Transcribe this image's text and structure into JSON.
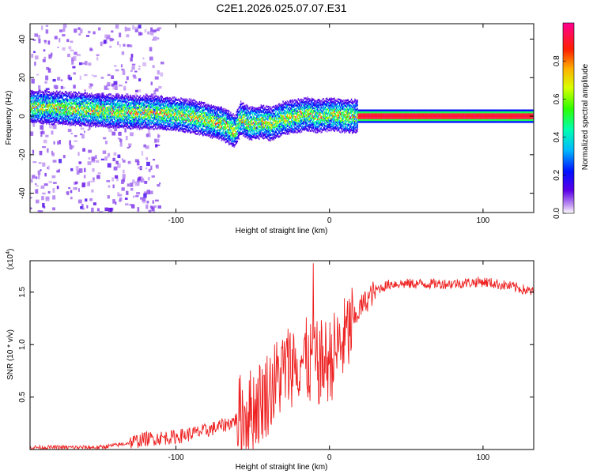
{
  "title": "C2E1.2026.025.07.07.E31",
  "chart_data": [
    {
      "type": "heatmap",
      "name": "spectrogram",
      "xlabel": "Height of straight line (km)",
      "ylabel": "Frequency (Hz)",
      "xlim": [
        -195,
        133
      ],
      "ylim": [
        -50,
        48
      ],
      "xticks": [
        -100,
        0,
        100
      ],
      "xtick_labels": [
        "-100",
        "0",
        "100"
      ],
      "yticks": [
        -40,
        -20,
        0,
        20,
        40
      ],
      "ytick_labels": [
        "-40",
        "-20",
        "0",
        "20",
        "40"
      ],
      "colorbar": {
        "label": "Normalized spectral amplitude",
        "range": [
          0,
          1
        ],
        "ticks": [
          0,
          0.2,
          0.4,
          0.6,
          0.8
        ],
        "tick_labels": [
          "0.0",
          "0.2",
          "0.4",
          "0.6",
          "0.8"
        ]
      },
      "ridge": {
        "x": [
          -195,
          -170,
          -150,
          -130,
          -115,
          -100,
          -90,
          -80,
          -70,
          -62,
          -58,
          -52,
          -45,
          -38,
          -30,
          -22,
          -15,
          -8,
          0,
          10,
          20,
          60,
          100,
          133
        ],
        "y": [
          5,
          4,
          3,
          2,
          2,
          1,
          0,
          -2,
          -4,
          -8,
          -1,
          -4,
          -3,
          -4,
          -1,
          0,
          1,
          0,
          1,
          0,
          0,
          0,
          0,
          0
        ]
      }
    },
    {
      "type": "line",
      "name": "snr",
      "xlabel": "Height of straight line (km)",
      "ylabel": "SNR (10 * v/v)",
      "yscale_label": "(x10",
      "yscale_exponent": "4",
      "xlim": [
        -195,
        133
      ],
      "ylim": [
        0,
        1.8
      ],
      "xticks": [
        -100,
        0,
        100
      ],
      "xtick_labels": [
        "-100",
        "0",
        "100"
      ],
      "yticks": [
        0.5,
        1.0,
        1.5
      ],
      "ytick_labels": [
        "0.5",
        "1.0",
        "1.5"
      ],
      "series": [
        {
          "name": "SNR",
          "color": "#ee2222",
          "x": [
            -195,
            -150,
            -135,
            -120,
            -100,
            -80,
            -65,
            -50,
            -40,
            -30,
            -20,
            -10,
            0,
            10,
            20,
            30,
            40,
            60,
            80,
            100,
            120,
            133
          ],
          "y": [
            0.02,
            0.02,
            0.05,
            0.1,
            0.12,
            0.18,
            0.25,
            0.38,
            0.55,
            0.75,
            0.88,
            0.8,
            0.85,
            1.05,
            1.35,
            1.52,
            1.58,
            1.58,
            1.58,
            1.6,
            1.55,
            1.5
          ]
        }
      ]
    }
  ]
}
